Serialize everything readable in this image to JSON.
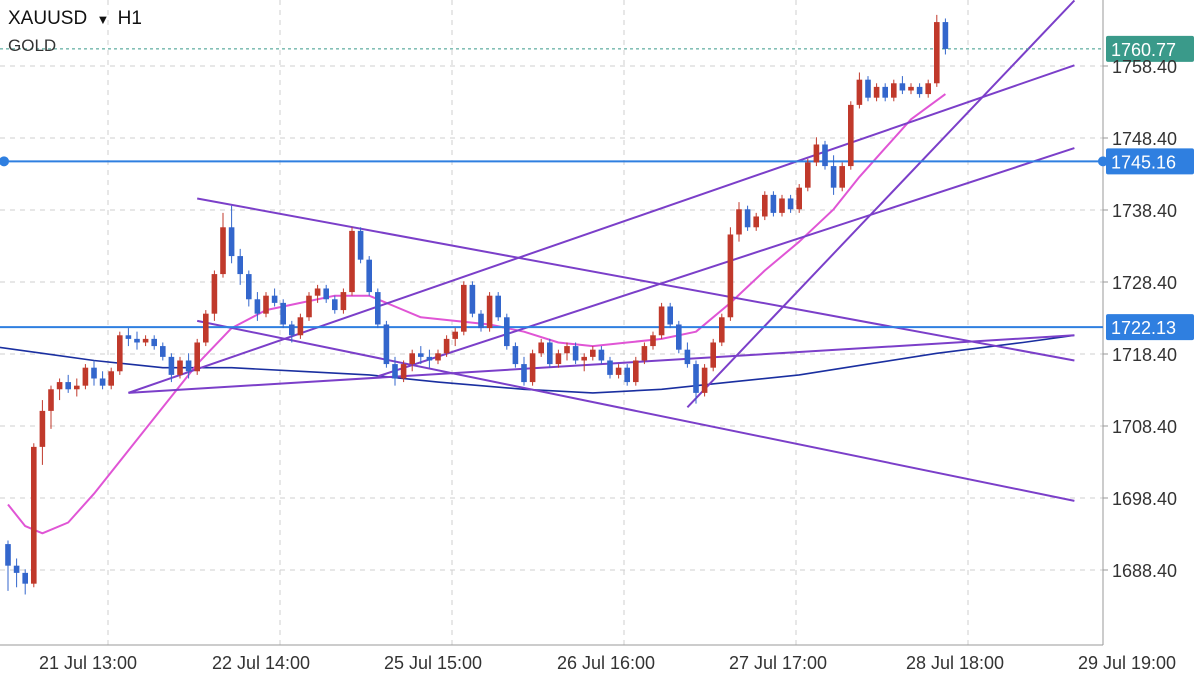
{
  "header": {
    "symbol": "XAUUSD",
    "dropdown_icon": "caret-down-icon",
    "timeframe": "H1",
    "instrument_name": "GOLD"
  },
  "price_tags": [
    {
      "value": "1760.77",
      "price": 1760.77,
      "color": "#3a9a8a",
      "style": "dotted"
    },
    {
      "value": "1745.16",
      "price": 1745.16,
      "color": "#2f7fe0",
      "style": "solid-handle"
    },
    {
      "value": "1722.13",
      "price": 1722.13,
      "color": "#2f7fe0",
      "style": "solid"
    }
  ],
  "chart_data": {
    "type": "candlestick",
    "symbol": "XAUUSD",
    "timeframe": "H1",
    "y_ticks": [
      "1758.40",
      "1748.40",
      "1738.40",
      "1728.40",
      "1718.40",
      "1708.40",
      "1698.40",
      "1688.40"
    ],
    "x_ticks": [
      "21 Jul 13:00",
      "22 Jul 14:00",
      "25 Jul 15:00",
      "26 Jul 16:00",
      "27 Jul 17:00",
      "28 Jul 18:00",
      "29 Jul 19:00"
    ],
    "ylim": [
      1683.5,
      1767.0
    ],
    "grid": true,
    "colors": {
      "up": "#c0392b",
      "down": "#3366cc",
      "ma_fast": "#e055d5",
      "ma_slow": "#1a2fa0",
      "trendline": "#7b3fc9"
    },
    "candles": [
      [
        1692.0,
        1692.5,
        1685.5,
        1689.0
      ],
      [
        1689.0,
        1690.0,
        1686.0,
        1688.0
      ],
      [
        1688.0,
        1688.5,
        1685.0,
        1686.5
      ],
      [
        1686.5,
        1706.0,
        1686.0,
        1705.5
      ],
      [
        1705.5,
        1712.0,
        1703.0,
        1710.5
      ],
      [
        1710.5,
        1714.0,
        1708.0,
        1713.5
      ],
      [
        1713.5,
        1715.0,
        1712.0,
        1714.5
      ],
      [
        1714.5,
        1715.5,
        1713.0,
        1713.5
      ],
      [
        1713.5,
        1715.0,
        1712.5,
        1714.0
      ],
      [
        1714.0,
        1717.0,
        1713.5,
        1716.5
      ],
      [
        1716.5,
        1717.5,
        1714.0,
        1715.0
      ],
      [
        1715.0,
        1716.0,
        1713.5,
        1714.0
      ],
      [
        1714.0,
        1716.5,
        1713.5,
        1716.0
      ],
      [
        1716.0,
        1721.5,
        1715.5,
        1721.0
      ],
      [
        1721.0,
        1722.0,
        1719.5,
        1720.5
      ],
      [
        1720.5,
        1721.5,
        1719.0,
        1720.0
      ],
      [
        1720.0,
        1721.0,
        1719.5,
        1720.5
      ],
      [
        1720.5,
        1721.0,
        1719.0,
        1719.5
      ],
      [
        1719.5,
        1720.0,
        1717.5,
        1718.0
      ],
      [
        1718.0,
        1718.5,
        1714.5,
        1715.5
      ],
      [
        1715.5,
        1718.0,
        1715.0,
        1717.5
      ],
      [
        1717.5,
        1718.5,
        1715.0,
        1716.0
      ],
      [
        1716.0,
        1720.5,
        1715.5,
        1720.0
      ],
      [
        1720.0,
        1724.5,
        1719.5,
        1724.0
      ],
      [
        1724.0,
        1730.0,
        1723.0,
        1729.5
      ],
      [
        1729.5,
        1738.0,
        1729.0,
        1736.0
      ],
      [
        1736.0,
        1739.0,
        1731.0,
        1732.0
      ],
      [
        1732.0,
        1733.0,
        1728.0,
        1729.5
      ],
      [
        1729.5,
        1730.0,
        1725.0,
        1726.0
      ],
      [
        1726.0,
        1727.0,
        1723.0,
        1724.0
      ],
      [
        1724.0,
        1727.0,
        1723.5,
        1726.5
      ],
      [
        1726.5,
        1727.5,
        1725.0,
        1725.5
      ],
      [
        1725.5,
        1726.0,
        1722.0,
        1722.5
      ],
      [
        1722.5,
        1723.0,
        1720.0,
        1721.0
      ],
      [
        1721.0,
        1724.0,
        1720.5,
        1723.5
      ],
      [
        1723.5,
        1727.0,
        1723.0,
        1726.5
      ],
      [
        1726.5,
        1728.0,
        1725.5,
        1727.5
      ],
      [
        1727.5,
        1728.0,
        1725.5,
        1726.0
      ],
      [
        1726.0,
        1726.5,
        1724.0,
        1724.5
      ],
      [
        1724.5,
        1727.5,
        1724.0,
        1727.0
      ],
      [
        1727.0,
        1736.0,
        1726.5,
        1735.5
      ],
      [
        1735.5,
        1736.0,
        1731.0,
        1731.5
      ],
      [
        1731.5,
        1732.0,
        1726.5,
        1727.0
      ],
      [
        1727.0,
        1727.5,
        1722.0,
        1722.5
      ],
      [
        1722.5,
        1723.0,
        1716.5,
        1717.0
      ],
      [
        1717.0,
        1718.0,
        1714.0,
        1715.0
      ],
      [
        1715.0,
        1717.5,
        1714.5,
        1717.0
      ],
      [
        1717.0,
        1719.0,
        1716.0,
        1718.5
      ],
      [
        1718.5,
        1719.5,
        1717.0,
        1718.0
      ],
      [
        1718.0,
        1719.0,
        1716.5,
        1717.5
      ],
      [
        1717.5,
        1719.0,
        1717.0,
        1718.5
      ],
      [
        1718.5,
        1721.0,
        1718.0,
        1720.5
      ],
      [
        1720.5,
        1722.0,
        1719.5,
        1721.5
      ],
      [
        1721.5,
        1728.5,
        1721.0,
        1728.0
      ],
      [
        1728.0,
        1728.5,
        1723.5,
        1724.0
      ],
      [
        1724.0,
        1724.5,
        1721.5,
        1722.0
      ],
      [
        1722.0,
        1727.0,
        1721.5,
        1726.5
      ],
      [
        1726.5,
        1727.0,
        1723.0,
        1723.5
      ],
      [
        1723.5,
        1724.0,
        1719.0,
        1719.5
      ],
      [
        1719.5,
        1720.0,
        1716.5,
        1717.0
      ],
      [
        1717.0,
        1718.0,
        1714.0,
        1714.5
      ],
      [
        1714.5,
        1719.0,
        1714.0,
        1718.5
      ],
      [
        1718.5,
        1720.5,
        1718.0,
        1720.0
      ],
      [
        1720.0,
        1720.5,
        1716.5,
        1717.0
      ],
      [
        1717.0,
        1719.0,
        1716.5,
        1718.5
      ],
      [
        1718.5,
        1720.0,
        1717.5,
        1719.5
      ],
      [
        1719.5,
        1720.0,
        1717.0,
        1717.5
      ],
      [
        1717.5,
        1718.5,
        1716.0,
        1718.0
      ],
      [
        1718.0,
        1719.5,
        1717.5,
        1719.0
      ],
      [
        1719.0,
        1719.5,
        1717.0,
        1717.5
      ],
      [
        1717.5,
        1718.0,
        1715.0,
        1715.5
      ],
      [
        1715.5,
        1717.0,
        1715.0,
        1716.5
      ],
      [
        1716.5,
        1717.0,
        1714.0,
        1714.5
      ],
      [
        1714.5,
        1718.0,
        1714.0,
        1717.5
      ],
      [
        1717.5,
        1720.0,
        1717.0,
        1719.5
      ],
      [
        1719.5,
        1721.5,
        1719.0,
        1721.0
      ],
      [
        1721.0,
        1725.5,
        1720.5,
        1725.0
      ],
      [
        1725.0,
        1725.5,
        1722.0,
        1722.5
      ],
      [
        1722.5,
        1723.0,
        1718.5,
        1719.0
      ],
      [
        1719.0,
        1720.0,
        1716.5,
        1717.0
      ],
      [
        1717.0,
        1717.5,
        1711.5,
        1713.0
      ],
      [
        1713.0,
        1717.0,
        1712.5,
        1716.5
      ],
      [
        1716.5,
        1720.5,
        1716.0,
        1720.0
      ],
      [
        1720.0,
        1724.0,
        1719.5,
        1723.5
      ],
      [
        1723.5,
        1736.0,
        1723.0,
        1735.0
      ],
      [
        1735.0,
        1739.5,
        1734.0,
        1738.5
      ],
      [
        1738.5,
        1739.0,
        1735.5,
        1736.0
      ],
      [
        1736.0,
        1738.0,
        1735.5,
        1737.5
      ],
      [
        1737.5,
        1741.0,
        1737.0,
        1740.5
      ],
      [
        1740.5,
        1741.0,
        1737.5,
        1738.0
      ],
      [
        1738.0,
        1740.5,
        1737.5,
        1740.0
      ],
      [
        1740.0,
        1740.5,
        1738.0,
        1738.5
      ],
      [
        1738.5,
        1742.0,
        1738.0,
        1741.5
      ],
      [
        1741.5,
        1745.5,
        1741.0,
        1745.0
      ],
      [
        1745.0,
        1748.5,
        1744.5,
        1747.5
      ],
      [
        1747.5,
        1748.0,
        1744.0,
        1744.5
      ],
      [
        1744.5,
        1746.0,
        1740.5,
        1741.5
      ],
      [
        1741.5,
        1745.0,
        1741.0,
        1744.5
      ],
      [
        1744.5,
        1753.5,
        1744.0,
        1753.0
      ],
      [
        1753.0,
        1757.5,
        1752.5,
        1756.5
      ],
      [
        1756.5,
        1757.0,
        1753.5,
        1754.0
      ],
      [
        1754.0,
        1756.0,
        1753.5,
        1755.5
      ],
      [
        1755.5,
        1756.0,
        1753.5,
        1754.0
      ],
      [
        1754.0,
        1756.5,
        1753.5,
        1756.0
      ],
      [
        1756.0,
        1757.0,
        1754.5,
        1755.0
      ],
      [
        1755.0,
        1756.0,
        1754.5,
        1755.5
      ],
      [
        1755.5,
        1756.0,
        1754.0,
        1754.5
      ],
      [
        1754.5,
        1756.5,
        1754.0,
        1756.0
      ],
      [
        1756.0,
        1765.5,
        1755.5,
        1764.5
      ],
      [
        1764.5,
        1765.0,
        1760.0,
        1760.77
      ]
    ],
    "ma_fast": [
      [
        0,
        1697.5
      ],
      [
        2,
        1694.5
      ],
      [
        4,
        1693.5
      ],
      [
        7,
        1695.0
      ],
      [
        10,
        1699.0
      ],
      [
        14,
        1705.0
      ],
      [
        18,
        1711.0
      ],
      [
        22,
        1717.0
      ],
      [
        26,
        1722.0
      ],
      [
        30,
        1724.5
      ],
      [
        34,
        1725.5
      ],
      [
        38,
        1726.5
      ],
      [
        42,
        1726.5
      ],
      [
        45,
        1725.0
      ],
      [
        48,
        1723.5
      ],
      [
        52,
        1723.0
      ],
      [
        56,
        1722.5
      ],
      [
        60,
        1721.5
      ],
      [
        64,
        1720.0
      ],
      [
        68,
        1719.5
      ],
      [
        72,
        1720.0
      ],
      [
        76,
        1720.5
      ],
      [
        80,
        1721.5
      ],
      [
        84,
        1725.5
      ],
      [
        88,
        1730.0
      ],
      [
        92,
        1734.0
      ],
      [
        96,
        1738.5
      ],
      [
        99,
        1743.0
      ],
      [
        102,
        1747.0
      ],
      [
        105,
        1751.0
      ],
      [
        109,
        1754.5
      ]
    ],
    "ma_slow": [
      [
        -2,
        1719.5
      ],
      [
        4,
        1718.5
      ],
      [
        10,
        1717.5
      ],
      [
        18,
        1716.5
      ],
      [
        26,
        1716.5
      ],
      [
        34,
        1716.0
      ],
      [
        42,
        1715.5
      ],
      [
        50,
        1714.5
      ],
      [
        60,
        1713.5
      ],
      [
        68,
        1713.0
      ],
      [
        76,
        1713.5
      ],
      [
        84,
        1714.5
      ],
      [
        92,
        1715.5
      ],
      [
        100,
        1717.0
      ],
      [
        108,
        1718.5
      ],
      [
        118,
        1720.0
      ],
      [
        124,
        1721.0
      ]
    ],
    "trendlines": [
      {
        "from": [
          14,
          1713.0
        ],
        "to": [
          124,
          1758.5
        ]
      },
      {
        "from": [
          43,
          1715.3
        ],
        "to": [
          124,
          1747.0
        ]
      },
      {
        "from": [
          22,
          1740.0
        ],
        "to": [
          124,
          1717.5
        ]
      },
      {
        "from": [
          22,
          1723.0
        ],
        "to": [
          124,
          1698.0
        ]
      },
      {
        "from": [
          14,
          1713.0
        ],
        "to": [
          124,
          1721.0
        ]
      },
      {
        "from": [
          79,
          1711.0
        ],
        "to": [
          124,
          1767.5
        ]
      }
    ]
  }
}
